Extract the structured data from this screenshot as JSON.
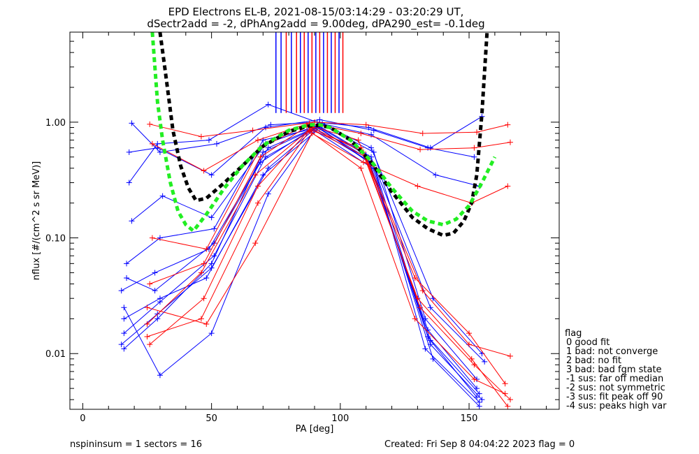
{
  "title": {
    "line1": "EPD Electrons EL-B, 2021-08-15/03:14:29 - 03:20:29 UT,",
    "line2": "dSectr2add = -2, dPhAng2add = 9.00deg, dPA290_est=  -0.1deg"
  },
  "footer": {
    "left": "nspininsum =  1  sectors = 16",
    "right": "Created: Fri Sep  8 04:04:22 2023   flag = 0"
  },
  "chart_data": {
    "type": "line",
    "xlabel": "PA [deg]",
    "ylabel": "nflux [#/(cm^2 s sr MeV)]",
    "xlim": [
      -5,
      185
    ],
    "ylim": [
      0.0033,
      6
    ],
    "y_scale": "log",
    "x_ticks": [
      0,
      50,
      100,
      150
    ],
    "x_tick_labels": [
      "0",
      "50",
      "100",
      "150"
    ],
    "y_ticks": [
      0.01,
      0.1,
      1.0
    ],
    "y_tick_labels": [
      "0.01",
      "0.10",
      "1.00"
    ],
    "grid": false,
    "series": [
      {
        "color": "#0000ff",
        "x": [
          16,
          30,
          51,
          71,
          92,
          112,
          134,
          154
        ],
        "y": [
          0.015,
          0.028,
          0.07,
          0.5,
          0.92,
          0.5,
          0.014,
          0.0045
        ]
      },
      {
        "color": "#0000ff",
        "x": [
          16,
          29,
          50,
          70,
          91,
          111,
          135,
          155
        ],
        "y": [
          0.011,
          0.02,
          0.06,
          0.55,
          0.9,
          0.48,
          0.012,
          0.004
        ]
      },
      {
        "color": "#0000ff",
        "x": [
          15,
          28,
          49,
          72,
          93,
          113,
          133,
          153
        ],
        "y": [
          0.035,
          0.05,
          0.08,
          0.6,
          0.95,
          0.55,
          0.02,
          0.006
        ]
      },
      {
        "color": "#0000ff",
        "x": [
          17,
          30,
          51,
          70,
          90,
          112,
          136,
          154
        ],
        "y": [
          0.06,
          0.1,
          0.12,
          0.7,
          0.88,
          0.45,
          0.009,
          0.0035
        ]
      },
      {
        "color": "#0000ff",
        "x": [
          18,
          29,
          50,
          71,
          92,
          113,
          134,
          152
        ],
        "y": [
          0.55,
          0.6,
          0.35,
          0.9,
          1.05,
          0.85,
          0.6,
          0.5
        ]
      },
      {
        "color": "#0000ff",
        "x": [
          19,
          30,
          52,
          73,
          91,
          111,
          135,
          155
        ],
        "y": [
          0.98,
          0.55,
          0.65,
          0.95,
          1.0,
          0.9,
          0.6,
          1.12
        ]
      },
      {
        "color": "#0000ff",
        "x": [
          18,
          29,
          49,
          72,
          92,
          112,
          137,
          154
        ],
        "y": [
          0.3,
          0.65,
          0.7,
          1.42,
          0.98,
          0.78,
          0.35,
          0.28
        ]
      },
      {
        "color": "#0000ff",
        "x": [
          16,
          30,
          50,
          72,
          90,
          114,
          135,
          156
        ],
        "y": [
          0.025,
          0.0065,
          0.015,
          0.24,
          0.85,
          0.38,
          0.025,
          0.0085
        ]
      },
      {
        "color": "#0000ff",
        "x": [
          17,
          28,
          51,
          69,
          91,
          110,
          134,
          153
        ],
        "y": [
          0.045,
          0.035,
          0.09,
          0.45,
          0.93,
          0.52,
          0.016,
          0.005
        ]
      },
      {
        "color": "#0000ff",
        "x": [
          19,
          31,
          50,
          71,
          93,
          112,
          136,
          155
        ],
        "y": [
          0.14,
          0.23,
          0.15,
          0.65,
          0.97,
          0.6,
          0.03,
          0.01
        ]
      },
      {
        "color": "#0000ff",
        "x": [
          16,
          30,
          48,
          70,
          92,
          113,
          133,
          154
        ],
        "y": [
          0.02,
          0.03,
          0.045,
          0.35,
          0.89,
          0.42,
          0.011,
          0.0038
        ]
      },
      {
        "color": "#0000ff",
        "x": [
          15,
          29,
          50,
          72,
          91,
          111,
          135,
          153
        ],
        "y": [
          0.012,
          0.022,
          0.055,
          0.4,
          0.91,
          0.46,
          0.013,
          0.0042
        ]
      },
      {
        "color": "#ff0000",
        "x": [
          26,
          47,
          68,
          88,
          108,
          130,
          151,
          165
        ],
        "y": [
          0.012,
          0.03,
          0.28,
          0.86,
          0.6,
          0.03,
          0.009,
          0.0035
        ]
      },
      {
        "color": "#ff0000",
        "x": [
          25,
          46,
          67,
          89,
          109,
          131,
          152,
          166
        ],
        "y": [
          0.018,
          0.05,
          0.35,
          0.9,
          0.55,
          0.025,
          0.008,
          0.004
        ]
      },
      {
        "color": "#ff0000",
        "x": [
          27,
          48,
          69,
          87,
          107,
          129,
          150,
          164
        ],
        "y": [
          0.1,
          0.08,
          0.6,
          0.95,
          0.7,
          0.045,
          0.015,
          0.0055
        ]
      },
      {
        "color": "#ff0000",
        "x": [
          26,
          46,
          66,
          90,
          110,
          132,
          153,
          165
        ],
        "y": [
          0.96,
          0.75,
          0.85,
          1.0,
          0.95,
          0.8,
          0.82,
          0.95
        ]
      },
      {
        "color": "#ff0000",
        "x": [
          27,
          47,
          68,
          88,
          108,
          131,
          152,
          166
        ],
        "y": [
          0.65,
          0.38,
          0.7,
          0.98,
          0.8,
          0.58,
          0.6,
          0.67
        ]
      },
      {
        "color": "#ff0000",
        "x": [
          25,
          48,
          67,
          89,
          109,
          130,
          151,
          165
        ],
        "y": [
          0.025,
          0.018,
          0.09,
          0.8,
          0.45,
          0.28,
          0.2,
          0.28
        ]
      },
      {
        "color": "#ff0000",
        "x": [
          26,
          47,
          69,
          87,
          110,
          132,
          150,
          166
        ],
        "y": [
          0.04,
          0.06,
          0.5,
          0.92,
          0.5,
          0.035,
          0.012,
          0.0095
        ]
      },
      {
        "color": "#ff0000",
        "x": [
          25,
          46,
          68,
          88,
          108,
          129,
          152,
          164
        ],
        "y": [
          0.014,
          0.02,
          0.2,
          0.84,
          0.4,
          0.02,
          0.006,
          0.0045
        ]
      }
    ],
    "vertical_lines": [
      {
        "color": "#0000ff",
        "x": 75
      },
      {
        "color": "#0000ff",
        "x": 77
      },
      {
        "color": "#ff0000",
        "x": 79
      },
      {
        "color": "#0000ff",
        "x": 81
      },
      {
        "color": "#ff0000",
        "x": 83
      },
      {
        "color": "#0000ff",
        "x": 84.5
      },
      {
        "color": "#ff0000",
        "x": 86
      },
      {
        "color": "#0000ff",
        "x": 87.5
      },
      {
        "color": "#ff0000",
        "x": 89
      },
      {
        "color": "#0000ff",
        "x": 90.5
      },
      {
        "color": "#ff0000",
        "x": 92
      },
      {
        "color": "#0000ff",
        "x": 93.5
      },
      {
        "color": "#ff0000",
        "x": 95
      },
      {
        "color": "#0000ff",
        "x": 96.5
      },
      {
        "color": "#ff0000",
        "x": 98
      },
      {
        "color": "#0000ff",
        "x": 99.5
      },
      {
        "color": "#ff0000",
        "x": 101
      }
    ],
    "fit_curves": [
      {
        "color": "#000000",
        "style": "dashed",
        "x": [
          30,
          32,
          35,
          38,
          41,
          44,
          48,
          55,
          62,
          70,
          80,
          88,
          92,
          96,
          104,
          112,
          120,
          128,
          134,
          140,
          144,
          148,
          151,
          153,
          155,
          157
        ],
        "y": [
          6,
          2.8,
          0.85,
          0.42,
          0.27,
          0.21,
          0.22,
          0.3,
          0.42,
          0.62,
          0.83,
          0.93,
          0.94,
          0.9,
          0.7,
          0.45,
          0.25,
          0.15,
          0.12,
          0.105,
          0.11,
          0.14,
          0.2,
          0.35,
          1.2,
          6
        ]
      },
      {
        "color": "#22ee22",
        "style": "dashed",
        "x": [
          27,
          29,
          31,
          34,
          37,
          40,
          43,
          48,
          55,
          62,
          70,
          80,
          88,
          92,
          96,
          104,
          112,
          120,
          128,
          134,
          140,
          145,
          150,
          155,
          160
        ],
        "y": [
          6,
          1.5,
          0.7,
          0.3,
          0.17,
          0.13,
          0.115,
          0.16,
          0.27,
          0.42,
          0.63,
          0.85,
          0.95,
          0.95,
          0.9,
          0.7,
          0.46,
          0.27,
          0.17,
          0.14,
          0.13,
          0.145,
          0.19,
          0.3,
          0.5
        ]
      }
    ],
    "legend": {
      "title": "flag",
      "entries": [
        " 0 good fit",
        " 1 bad: not converge",
        " 2 bad: no fit",
        " 3 bad: bad fgm state",
        "-1 sus: far off median",
        "-2 sus: not symmetric",
        "-3 sus: fit peak off 90",
        "-4 sus: peaks high var"
      ],
      "placement": "right"
    }
  }
}
